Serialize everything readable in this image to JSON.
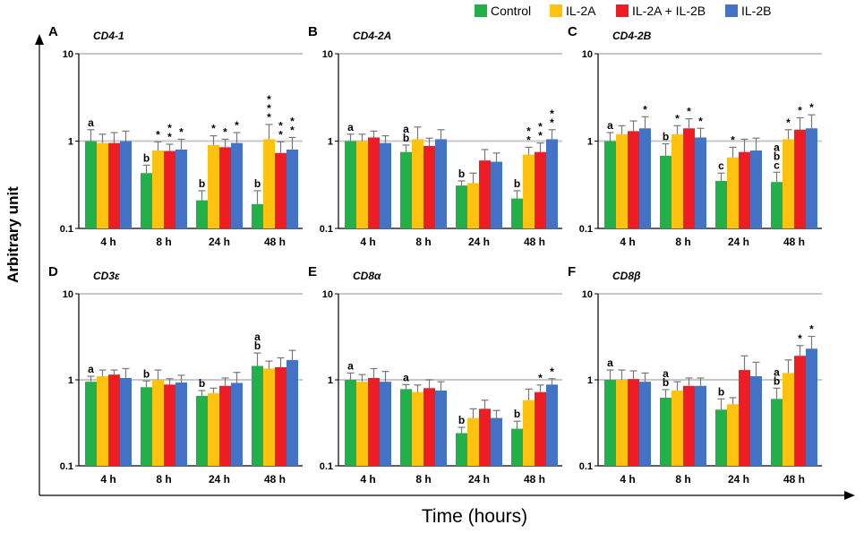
{
  "figure": {
    "x_title": "Time (hours)",
    "y_title": "Arbitrary unit",
    "tick_labels": [
      "0.1",
      "1",
      "10"
    ]
  },
  "legend": [
    {
      "name": "Control",
      "color": "#22b04a"
    },
    {
      "name": "IL-2A",
      "color": "#ffc20e"
    },
    {
      "name": "IL-2A + IL-2B",
      "color": "#ee1c24"
    },
    {
      "name": "IL-2B",
      "color": "#4472c4"
    }
  ],
  "chart_data": [
    {
      "type": "bar",
      "panel": "A",
      "title": "CD4-1",
      "yscale": "log",
      "ylim": [
        0.1,
        10
      ],
      "categories": [
        "4 h",
        "8 h",
        "24 h",
        "48 h"
      ],
      "series": [
        {
          "name": "Control",
          "values": [
            1.0,
            0.43,
            0.21,
            0.19
          ],
          "errors": [
            0.35,
            0.1,
            0.06,
            0.08
          ]
        },
        {
          "name": "IL-2A",
          "values": [
            0.95,
            0.78,
            0.9,
            1.05
          ],
          "errors": [
            0.25,
            0.2,
            0.25,
            0.5
          ]
        },
        {
          "name": "IL-2A + IL-2B",
          "values": [
            0.95,
            0.77,
            0.85,
            0.73
          ],
          "errors": [
            0.3,
            0.15,
            0.2,
            0.25
          ]
        },
        {
          "name": "IL-2B",
          "values": [
            1.0,
            0.8,
            0.95,
            0.8
          ],
          "errors": [
            0.3,
            0.25,
            0.3,
            0.3
          ]
        }
      ],
      "annotations": [
        {
          "group": "4 h",
          "series": "Control",
          "text": "a"
        },
        {
          "group": "8 h",
          "series": "Control",
          "text": "b"
        },
        {
          "group": "8 h",
          "series": "IL-2A",
          "text": "*"
        },
        {
          "group": "8 h",
          "series": "IL-2A + IL-2B",
          "text": "* *"
        },
        {
          "group": "8 h",
          "series": "IL-2B",
          "text": "*"
        },
        {
          "group": "24 h",
          "series": "Control",
          "text": "b"
        },
        {
          "group": "24 h",
          "series": "IL-2A",
          "text": "*"
        },
        {
          "group": "24 h",
          "series": "IL-2A + IL-2B",
          "text": "*"
        },
        {
          "group": "24 h",
          "series": "IL-2B",
          "text": "*"
        },
        {
          "group": "48 h",
          "series": "Control",
          "text": "b"
        },
        {
          "group": "48 h",
          "series": "IL-2A",
          "text": "* * *"
        },
        {
          "group": "48 h",
          "series": "IL-2A + IL-2B",
          "text": "* *"
        },
        {
          "group": "48 h",
          "series": "IL-2B",
          "text": "* *"
        }
      ]
    },
    {
      "type": "bar",
      "panel": "B",
      "title": "CD4-2A",
      "yscale": "log",
      "ylim": [
        0.1,
        10
      ],
      "categories": [
        "4 h",
        "8 h",
        "24 h",
        "48 h"
      ],
      "series": [
        {
          "name": "Control",
          "values": [
            1.0,
            0.75,
            0.31,
            0.22
          ],
          "errors": [
            0.2,
            0.15,
            0.04,
            0.05
          ]
        },
        {
          "name": "IL-2A",
          "values": [
            1.0,
            1.05,
            0.33,
            0.7
          ],
          "errors": [
            0.2,
            0.4,
            0.1,
            0.15
          ]
        },
        {
          "name": "IL-2A + IL-2B",
          "values": [
            1.1,
            0.88,
            0.6,
            0.75
          ],
          "errors": [
            0.2,
            0.2,
            0.2,
            0.2
          ]
        },
        {
          "name": "IL-2B",
          "values": [
            0.95,
            1.05,
            0.58,
            1.05
          ],
          "errors": [
            0.2,
            0.3,
            0.15,
            0.3
          ]
        }
      ],
      "annotations": [
        {
          "group": "4 h",
          "series": "Control",
          "text": "a"
        },
        {
          "group": "8 h",
          "series": "Control",
          "text": "a b"
        },
        {
          "group": "24 h",
          "series": "Control",
          "text": "b"
        },
        {
          "group": "48 h",
          "series": "Control",
          "text": "b"
        },
        {
          "group": "48 h",
          "series": "IL-2A",
          "text": "* *"
        },
        {
          "group": "48 h",
          "series": "IL-2A + IL-2B",
          "text": "* *"
        },
        {
          "group": "48 h",
          "series": "IL-2B",
          "text": "* *"
        }
      ]
    },
    {
      "type": "bar",
      "panel": "C",
      "title": "CD4-2B",
      "yscale": "log",
      "ylim": [
        0.1,
        10
      ],
      "categories": [
        "4 h",
        "8 h",
        "24 h",
        "48 h"
      ],
      "series": [
        {
          "name": "Control",
          "values": [
            1.0,
            0.68,
            0.35,
            0.34
          ],
          "errors": [
            0.25,
            0.25,
            0.08,
            0.1
          ]
        },
        {
          "name": "IL-2A",
          "values": [
            1.2,
            1.2,
            0.65,
            1.05
          ],
          "errors": [
            0.3,
            0.3,
            0.2,
            0.3
          ]
        },
        {
          "name": "IL-2A + IL-2B",
          "values": [
            1.3,
            1.4,
            0.75,
            1.35
          ],
          "errors": [
            0.4,
            0.4,
            0.3,
            0.5
          ]
        },
        {
          "name": "IL-2B",
          "values": [
            1.4,
            1.1,
            0.78,
            1.4
          ],
          "errors": [
            0.5,
            0.3,
            0.3,
            0.6
          ]
        }
      ],
      "annotations": [
        {
          "group": "4 h",
          "series": "Control",
          "text": "a"
        },
        {
          "group": "4 h",
          "series": "IL-2B",
          "text": "*"
        },
        {
          "group": "8 h",
          "series": "Control",
          "text": "b"
        },
        {
          "group": "8 h",
          "series": "IL-2A",
          "text": "*"
        },
        {
          "group": "8 h",
          "series": "IL-2A + IL-2B",
          "text": "*"
        },
        {
          "group": "8 h",
          "series": "IL-2B",
          "text": "*"
        },
        {
          "group": "24 h",
          "series": "Control",
          "text": "c"
        },
        {
          "group": "24 h",
          "series": "IL-2A",
          "text": "*"
        },
        {
          "group": "48 h",
          "series": "Control",
          "text": "a b c"
        },
        {
          "group": "48 h",
          "series": "IL-2A",
          "text": "*"
        },
        {
          "group": "48 h",
          "series": "IL-2A + IL-2B",
          "text": "*"
        },
        {
          "group": "48 h",
          "series": "IL-2B",
          "text": "*"
        }
      ]
    },
    {
      "type": "bar",
      "panel": "D",
      "title": "CD3ε",
      "yscale": "log",
      "ylim": [
        0.1,
        10
      ],
      "categories": [
        "4 h",
        "8 h",
        "24 h",
        "48 h"
      ],
      "series": [
        {
          "name": "Control",
          "values": [
            0.95,
            0.82,
            0.65,
            1.45
          ],
          "errors": [
            0.15,
            0.15,
            0.1,
            0.6
          ]
        },
        {
          "name": "IL-2A",
          "values": [
            1.1,
            1.0,
            0.7,
            1.35
          ],
          "errors": [
            0.2,
            0.3,
            0.1,
            0.3
          ]
        },
        {
          "name": "IL-2A + IL-2B",
          "values": [
            1.15,
            0.88,
            0.85,
            1.4
          ],
          "errors": [
            0.15,
            0.15,
            0.2,
            0.4
          ]
        },
        {
          "name": "IL-2B",
          "values": [
            1.05,
            0.93,
            0.92,
            1.7
          ],
          "errors": [
            0.3,
            0.2,
            0.3,
            0.5
          ]
        }
      ],
      "annotations": [
        {
          "group": "4 h",
          "series": "Control",
          "text": "a"
        },
        {
          "group": "8 h",
          "series": "Control",
          "text": "b"
        },
        {
          "group": "24 h",
          "series": "Control",
          "text": "b"
        },
        {
          "group": "48 h",
          "series": "Control",
          "text": "a b"
        }
      ]
    },
    {
      "type": "bar",
      "panel": "E",
      "title": "CD8α",
      "yscale": "log",
      "ylim": [
        0.1,
        10
      ],
      "categories": [
        "4 h",
        "8 h",
        "24 h",
        "48 h"
      ],
      "series": [
        {
          "name": "Control",
          "values": [
            1.0,
            0.78,
            0.24,
            0.27
          ],
          "errors": [
            0.2,
            0.1,
            0.04,
            0.06
          ]
        },
        {
          "name": "IL-2A",
          "values": [
            0.95,
            0.72,
            0.36,
            0.58
          ],
          "errors": [
            0.2,
            0.15,
            0.1,
            0.2
          ]
        },
        {
          "name": "IL-2A + IL-2B",
          "values": [
            1.05,
            0.8,
            0.46,
            0.72
          ],
          "errors": [
            0.3,
            0.2,
            0.12,
            0.15
          ]
        },
        {
          "name": "IL-2B",
          "values": [
            0.95,
            0.75,
            0.36,
            0.88
          ],
          "errors": [
            0.3,
            0.2,
            0.08,
            0.15
          ]
        }
      ],
      "annotations": [
        {
          "group": "4 h",
          "series": "Control",
          "text": "a"
        },
        {
          "group": "8 h",
          "series": "Control",
          "text": "a"
        },
        {
          "group": "24 h",
          "series": "Control",
          "text": "b"
        },
        {
          "group": "48 h",
          "series": "Control",
          "text": "b"
        },
        {
          "group": "48 h",
          "series": "IL-2A + IL-2B",
          "text": "*"
        },
        {
          "group": "48 h",
          "series": "IL-2B",
          "text": "*"
        }
      ]
    },
    {
      "type": "bar",
      "panel": "F",
      "title": "CD8β",
      "yscale": "log",
      "ylim": [
        0.1,
        10
      ],
      "categories": [
        "4 h",
        "8 h",
        "24 h",
        "48 h"
      ],
      "series": [
        {
          "name": "Control",
          "values": [
            1.0,
            0.62,
            0.45,
            0.6
          ],
          "errors": [
            0.3,
            0.15,
            0.15,
            0.2
          ]
        },
        {
          "name": "IL-2A",
          "values": [
            1.0,
            0.75,
            0.52,
            1.2
          ],
          "errors": [
            0.3,
            0.2,
            0.1,
            0.5
          ]
        },
        {
          "name": "IL-2A + IL-2B",
          "values": [
            1.02,
            0.85,
            1.3,
            1.9
          ],
          "errors": [
            0.25,
            0.2,
            0.6,
            0.6
          ]
        },
        {
          "name": "IL-2B",
          "values": [
            0.95,
            0.85,
            1.1,
            2.3
          ],
          "errors": [
            0.25,
            0.2,
            0.5,
            0.9
          ]
        }
      ],
      "annotations": [
        {
          "group": "4 h",
          "series": "Control",
          "text": "a"
        },
        {
          "group": "8 h",
          "series": "Control",
          "text": "a b"
        },
        {
          "group": "24 h",
          "series": "Control",
          "text": "b"
        },
        {
          "group": "48 h",
          "series": "Control",
          "text": "a b"
        },
        {
          "group": "48 h",
          "series": "IL-2A + IL-2B",
          "text": "*"
        },
        {
          "group": "48 h",
          "series": "IL-2B",
          "text": "*"
        }
      ]
    }
  ]
}
